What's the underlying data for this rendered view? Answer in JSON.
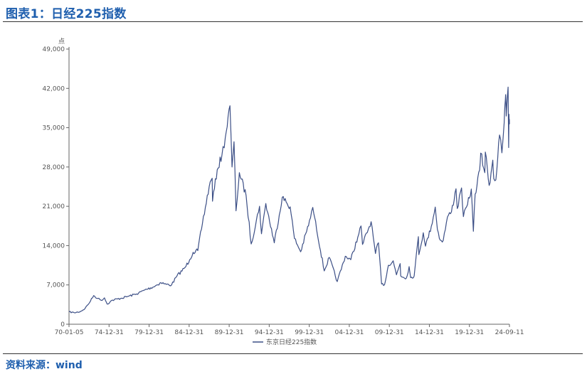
{
  "header": {
    "title": "图表1：日经225指数"
  },
  "footer": {
    "source": "资料来源：wind"
  },
  "chart_data": {
    "type": "line",
    "ylabel": "点",
    "ylim": [
      0,
      49000
    ],
    "yticks": [
      0,
      7000,
      14000,
      21000,
      28000,
      35000,
      42000,
      49000
    ],
    "ytick_labels": [
      "0",
      "7,000",
      "14,000",
      "21,000",
      "28,000",
      "35,000",
      "42,000",
      "49,000"
    ],
    "xlim": [
      "1970-01-05",
      "2024-09-11"
    ],
    "xtick_labels": [
      "70-01-05",
      "74-12-31",
      "79-12-31",
      "84-12-31",
      "89-12-31",
      "94-12-31",
      "99-12-31",
      "04-12-31",
      "09-12-31",
      "14-12-31",
      "19-12-31",
      "24-09-11"
    ],
    "legend_position": "bottom-center",
    "grid": false,
    "series_color": "#3c4f86",
    "series": [
      {
        "name": "东京日经225指数",
        "points": [
          [
            "1970-01-05",
            2200
          ],
          [
            "1970-09-01",
            2050
          ],
          [
            "1971-06-01",
            2250
          ],
          [
            "1972-01-01",
            2800
          ],
          [
            "1972-09-01",
            4100
          ],
          [
            "1973-01-24",
            5100
          ],
          [
            "1973-08-01",
            4600
          ],
          [
            "1974-01-01",
            4250
          ],
          [
            "1974-06-01",
            4700
          ],
          [
            "1974-10-01",
            3600
          ],
          [
            "1975-06-01",
            4300
          ],
          [
            "1976-06-01",
            4600
          ],
          [
            "1977-06-01",
            5000
          ],
          [
            "1978-06-01",
            5400
          ],
          [
            "1979-06-01",
            6100
          ],
          [
            "1980-06-01",
            6600
          ],
          [
            "1981-06-01",
            7400
          ],
          [
            "1982-02-01",
            7100
          ],
          [
            "1982-10-01",
            7000
          ],
          [
            "1983-06-01",
            8600
          ],
          [
            "1984-06-01",
            10100
          ],
          [
            "1984-12-31",
            11500
          ],
          [
            "1985-06-01",
            12800
          ],
          [
            "1986-01-01",
            13100
          ],
          [
            "1986-08-01",
            18000
          ],
          [
            "1987-06-01",
            24500
          ],
          [
            "1987-10-15",
            26000
          ],
          [
            "1987-11-01",
            21900
          ],
          [
            "1988-06-01",
            27500
          ],
          [
            "1988-12-31",
            30100
          ],
          [
            "1989-06-01",
            33200
          ],
          [
            "1989-12-29",
            38915
          ],
          [
            "1990-04-02",
            28000
          ],
          [
            "1990-07-01",
            32500
          ],
          [
            "1990-10-01",
            20200
          ],
          [
            "1991-03-01",
            27000
          ],
          [
            "1991-12-31",
            22900
          ],
          [
            "1992-08-18",
            14300
          ],
          [
            "1993-09-01",
            21000
          ],
          [
            "1993-11-29",
            16100
          ],
          [
            "1994-06-13",
            21500
          ],
          [
            "1995-07-03",
            14500
          ],
          [
            "1996-06-26",
            22600
          ],
          [
            "1997-06-20",
            20900
          ],
          [
            "1997-12-31",
            15300
          ],
          [
            "1998-10-09",
            12900
          ],
          [
            "1999-12-31",
            18934
          ],
          [
            "2000-04-12",
            20800
          ],
          [
            "2001-09-14",
            9500
          ],
          [
            "2002-05-01",
            11900
          ],
          [
            "2003-04-28",
            7600
          ],
          [
            "2004-04-26",
            12100
          ],
          [
            "2004-12-31",
            11500
          ],
          [
            "2005-12-31",
            16100
          ],
          [
            "2006-04-07",
            17500
          ],
          [
            "2006-06-14",
            14200
          ],
          [
            "2007-07-09",
            18261
          ],
          [
            "2008-01-22",
            12600
          ],
          [
            "2008-06-06",
            14500
          ],
          [
            "2008-10-27",
            7162
          ],
          [
            "2009-03-10",
            7054
          ],
          [
            "2009-08-31",
            10500
          ],
          [
            "2010-04-05",
            11300
          ],
          [
            "2010-08-31",
            8800
          ],
          [
            "2011-02-17",
            10800
          ],
          [
            "2011-03-15",
            8600
          ],
          [
            "2011-11-25",
            8200
          ],
          [
            "2012-03-27",
            10250
          ],
          [
            "2012-06-04",
            8300
          ],
          [
            "2012-11-14",
            8600
          ],
          [
            "2013-05-22",
            15600
          ],
          [
            "2013-06-13",
            12400
          ],
          [
            "2013-12-30",
            16300
          ],
          [
            "2014-04-11",
            13900
          ],
          [
            "2014-12-31",
            17450
          ],
          [
            "2015-06-24",
            20868
          ],
          [
            "2015-09-29",
            16900
          ],
          [
            "2016-02-12",
            14950
          ],
          [
            "2016-06-24",
            14950
          ],
          [
            "2016-12-30",
            19100
          ],
          [
            "2017-06-30",
            20000
          ],
          [
            "2018-01-23",
            24124
          ],
          [
            "2018-03-23",
            20600
          ],
          [
            "2018-10-02",
            24270
          ],
          [
            "2018-12-25",
            19155
          ],
          [
            "2019-06-28",
            21300
          ],
          [
            "2019-12-17",
            24066
          ],
          [
            "2020-03-19",
            16552
          ],
          [
            "2020-06-08",
            23178
          ],
          [
            "2020-12-30",
            27444
          ],
          [
            "2021-02-16",
            30467
          ],
          [
            "2021-08-20",
            27000
          ],
          [
            "2021-09-14",
            30670
          ],
          [
            "2022-03-08",
            24717
          ],
          [
            "2022-08-17",
            29222
          ],
          [
            "2022-10-03",
            25937
          ],
          [
            "2023-01-04",
            25716
          ],
          [
            "2023-06-19",
            33706
          ],
          [
            "2023-10-04",
            30527
          ],
          [
            "2024-01-15",
            35901
          ],
          [
            "2024-02-22",
            39098
          ],
          [
            "2024-03-22",
            40888
          ],
          [
            "2024-04-19",
            37068
          ],
          [
            "2024-07-11",
            42224
          ],
          [
            "2024-08-05",
            31458
          ],
          [
            "2024-08-19",
            37389
          ],
          [
            "2024-09-06",
            36391
          ],
          [
            "2024-09-11",
            35620
          ]
        ]
      }
    ]
  }
}
